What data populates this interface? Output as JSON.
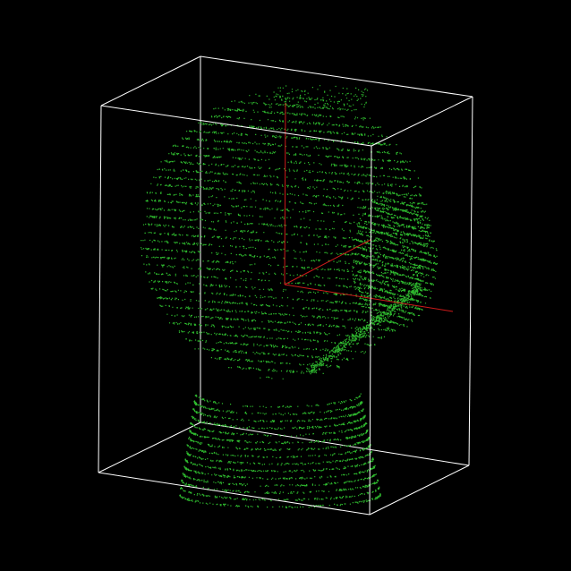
{
  "viewer": {
    "background_color": "#000000",
    "point_color": "#2eb82e",
    "bounding_box_color": "#ffffff",
    "axes_color": "#cc1a1a",
    "content": "point-cloud-head-bust"
  }
}
